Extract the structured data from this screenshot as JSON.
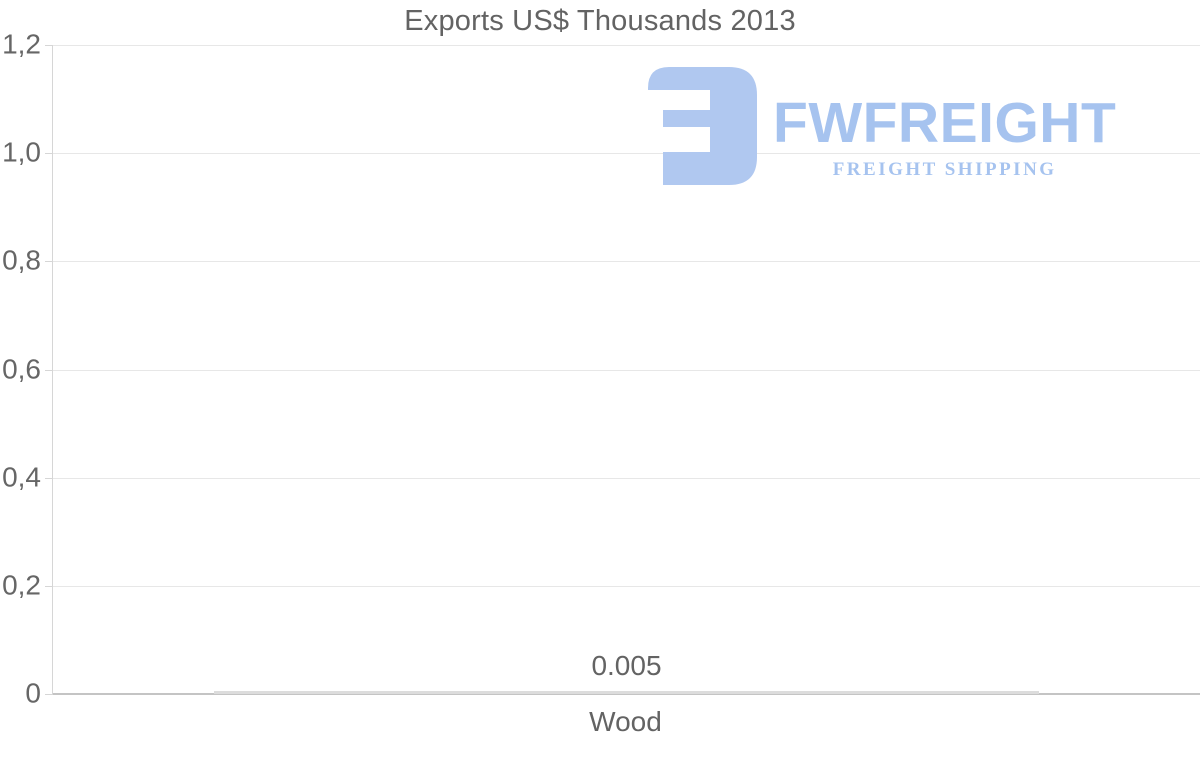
{
  "title": "Exports US$ Thousands 2013",
  "chart_data": {
    "type": "bar",
    "title": "Exports US$ Thousands 2013",
    "categories": [
      "Wood"
    ],
    "values": [
      0.005
    ],
    "bar_labels": [
      "0.005"
    ],
    "xlabel": "",
    "ylabel": "",
    "ylim": [
      0,
      1.2
    ],
    "yticks": [
      0,
      0.2,
      0.4,
      0.6,
      0.8,
      1.0,
      1.2
    ],
    "ytick_labels": [
      "0",
      "0,2",
      "0,4",
      "0,6",
      "0,8",
      "1,0",
      "1,2"
    ],
    "grid": true,
    "legend": false,
    "bar_color": "#dcdcdc",
    "background": "#ffffff"
  },
  "watermark": {
    "brand": "FWFREIGHT",
    "tagline": "FREIGHT SHIPPING",
    "icon": "fwfreight-logo-icon",
    "icon_color": "#b0c8f0",
    "text_color": "#a6c3ef"
  },
  "colors": {
    "title_text": "#636363",
    "axis_text": "#666666",
    "gridline": "#e7e7e7",
    "axis_line": "#c4c4c4",
    "bar": "#dcdcdc"
  }
}
